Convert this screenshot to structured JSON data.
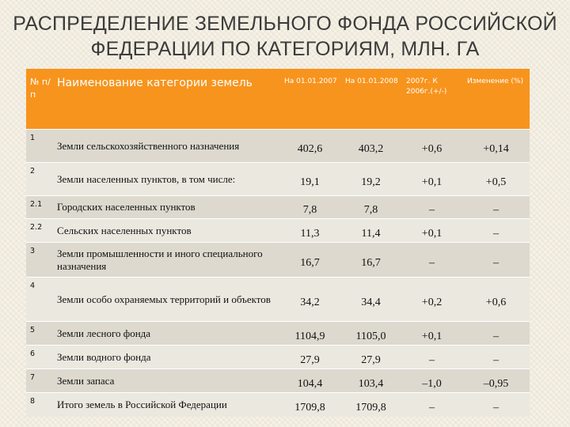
{
  "title": {
    "line1": "РАСПРЕДЕЛЕНИЕ ЗЕМЕЛЬНОГО ФОНДА РОССИЙСКОЙ",
    "line2": "ФЕДЕРАЦИИ ПО КАТЕГОРИЯМ, МЛН. ГА"
  },
  "colors": {
    "header_bg": "#f7941d",
    "row_odd": "#ddd9cf",
    "row_even": "#ebe8df"
  },
  "table": {
    "headers": {
      "num": "№ п/п",
      "name": "Наименование категории земель",
      "y2007": "На 01.01.2007",
      "y2008": "На 01.01.2008",
      "diff": "2007г. К 2006г.(+/-)",
      "pct": "Изменение (%)"
    },
    "rows": [
      {
        "num": "1",
        "name": "Земли сельскохозяйственного назначения",
        "y2007": "402,6",
        "y2008": "403,2",
        "diff": "+0,6",
        "pct": "+0,14"
      },
      {
        "num": "2",
        "name": "Земли населенных пунктов, в том числе:",
        "y2007": "19,1",
        "y2008": "19,2",
        "diff": "+0,1",
        "pct": "+0,5"
      },
      {
        "num": "2.1",
        "name": "Городских населенных пунктов",
        "y2007": "7,8",
        "y2008": "7,8",
        "diff": "–",
        "pct": "–"
      },
      {
        "num": "2.2",
        "name": "Сельских населенных пунктов",
        "y2007": "11,3",
        "y2008": "11,4",
        "diff": "+0,1",
        "pct": "–"
      },
      {
        "num": "3",
        "name": "Земли промышленности и иного специального назначения",
        "y2007": "16,7",
        "y2008": "16,7",
        "diff": "–",
        "pct": "–"
      },
      {
        "num": "4",
        "name": "Земли особо охраняемых территорий и объектов",
        "y2007": "34,2",
        "y2008": "34,4",
        "diff": "+0,2",
        "pct": "+0,6"
      },
      {
        "num": "5",
        "name": "Земли лесного фонда",
        "y2007": "1104,9",
        "y2008": "1105,0",
        "diff": "+0,1",
        "pct": "–"
      },
      {
        "num": "6",
        "name": "Земли водного фонда",
        "y2007": "27,9",
        "y2008": "27,9",
        "diff": "–",
        "pct": "–"
      },
      {
        "num": "7",
        "name": "Земли запаса",
        "y2007": "104,4",
        "y2008": "103,4",
        "diff": "–1,0",
        "pct": "–0,95"
      },
      {
        "num": "8",
        "name": "Итого земель в Российской Федерации",
        "y2007": "1709,8",
        "y2008": "1709,8",
        "diff": "–",
        "pct": "–"
      }
    ]
  }
}
